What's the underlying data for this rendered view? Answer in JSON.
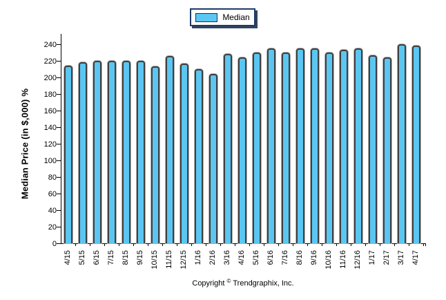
{
  "legend": {
    "label": "Median",
    "swatch_color": "#5bc6f2",
    "border_color": "#1e3a66"
  },
  "chart_data": {
    "type": "bar",
    "title": "",
    "xlabel": "",
    "ylabel": "Median Price (in $,000) %",
    "ylim": [
      0,
      250
    ],
    "yticks": [
      0,
      20,
      40,
      60,
      80,
      100,
      120,
      140,
      160,
      180,
      200,
      220,
      240
    ],
    "grid": false,
    "legend_position": "top-center",
    "bar_color": "#5bc6f2",
    "bar_border_color": "#3f3f3f",
    "categories": [
      "4/15",
      "5/15",
      "6/15",
      "7/15",
      "8/15",
      "9/15",
      "10/15",
      "11/15",
      "12/15",
      "1/16",
      "2/16",
      "3/16",
      "4/16",
      "5/16",
      "6/16",
      "7/16",
      "8/16",
      "9/16",
      "10/16",
      "11/16",
      "12/16",
      "1/17",
      "2/17",
      "3/17",
      "4/17"
    ],
    "series": [
      {
        "name": "Median",
        "values": [
          214,
          218,
          220,
          220,
          220,
          220,
          213,
          226,
          217,
          210,
          204,
          228,
          224,
          230,
          235,
          230,
          235,
          235,
          230,
          233,
          235,
          227,
          224,
          240,
          238
        ]
      }
    ]
  },
  "footer": {
    "text_before": "Copyright",
    "symbol": "©",
    "text_after": "Trendgraphix, Inc."
  }
}
